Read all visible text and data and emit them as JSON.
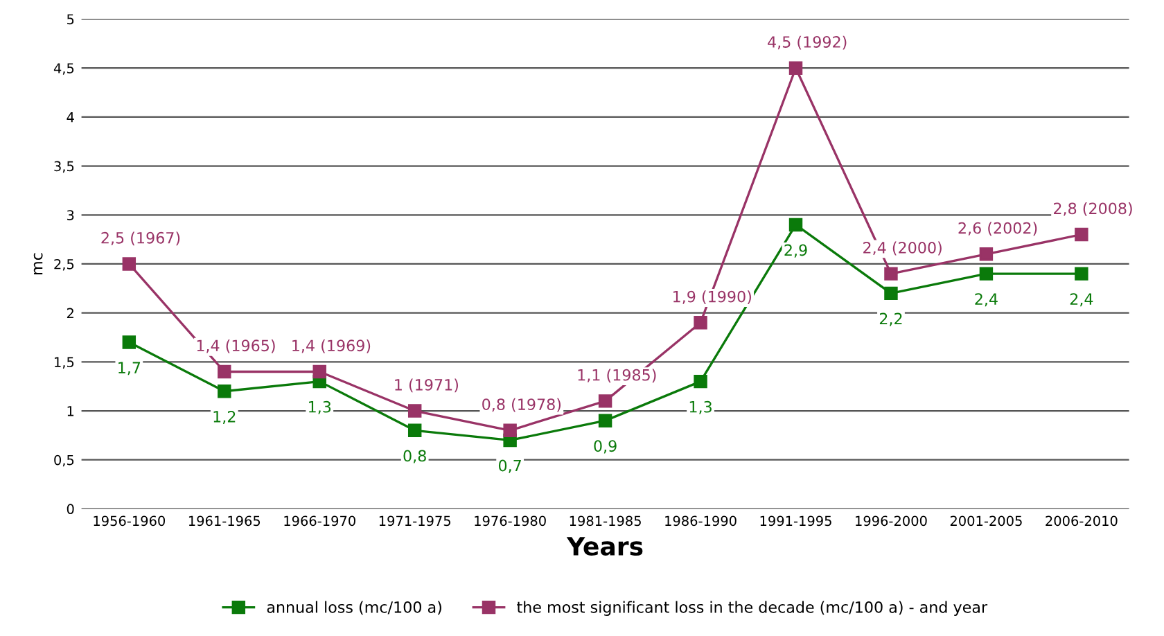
{
  "chart_data": {
    "type": "line",
    "xlabel": "Years",
    "ylabel": "mc",
    "categories": [
      "1956-1960",
      "1961-1965",
      "1966-1970",
      "1971-1975",
      "1976-1980",
      "1981-1985",
      "1986-1990",
      "1991-1995",
      "1996-2000",
      "2001-2005",
      "2006-2010"
    ],
    "series": [
      {
        "name": "annual loss (mc/100 a)",
        "color": "#0a7a0a",
        "values": [
          1.7,
          1.2,
          1.3,
          0.8,
          0.7,
          0.9,
          1.3,
          2.9,
          2.2,
          2.4,
          2.4
        ],
        "value_labels": [
          "1,7",
          "1,2",
          "1,3",
          "0,8",
          "0,7",
          "0,9",
          "1,3",
          "2,9",
          "2,2",
          "2,4",
          "2,4"
        ]
      },
      {
        "name": "the most significant loss in the decade (mc/100 a) - and year",
        "color": "#993366",
        "values": [
          2.5,
          1.4,
          1.4,
          1.0,
          0.8,
          1.1,
          1.9,
          4.5,
          2.4,
          2.6,
          2.8
        ],
        "value_labels": [
          "2,5 (1967)",
          "1,4 (1965)",
          "1,4 (1969)",
          "1 (1971)",
          "0,8 (1978)",
          "1,1 (1985)",
          "1,9 (1990)",
          "4,5 (1992)",
          "2,4 (2000)",
          "2,6 (2002)",
          "2,8 (2008)"
        ]
      }
    ],
    "ylim": [
      0,
      5
    ],
    "yticks": [
      0,
      {
        "value": 0.5,
        "label": "0,5"
      },
      1,
      {
        "value": 1.5,
        "label": "1,5"
      },
      2,
      {
        "value": 2.5,
        "label": "2,5"
      },
      3,
      {
        "value": 3.5,
        "label": "3,5"
      },
      4,
      {
        "value": 4.5,
        "label": "4,5"
      },
      5
    ],
    "grid": "y",
    "legend": "bottom",
    "marker": "square",
    "line_style": "solid"
  }
}
